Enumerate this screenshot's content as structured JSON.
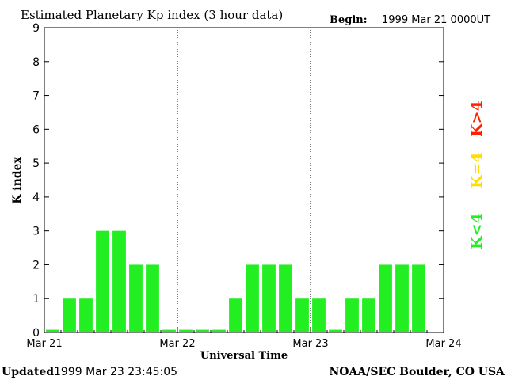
{
  "header": {
    "title": "Estimated Planetary Kp index (3 hour data)",
    "begin_label": "Begin:",
    "begin_value": "1999 Mar 21 0000UT"
  },
  "footer": {
    "updated_label": "Updated",
    "updated_value": "1999 Mar 23 23:45:05",
    "credit": "NOAA/SEC Boulder, CO USA"
  },
  "legend": {
    "items": [
      {
        "label": "K>4",
        "color": "#ff2200"
      },
      {
        "label": "K=4",
        "color": "#ffdd00"
      },
      {
        "label": "K<4",
        "color": "#22ee22"
      }
    ]
  },
  "chart_data": {
    "type": "bar",
    "ylabel": "K index",
    "xlabel": "Universal Time",
    "ylim": [
      0,
      9
    ],
    "yticks": [
      0,
      1,
      2,
      3,
      4,
      5,
      6,
      7,
      8,
      9
    ],
    "x_tick_labels": [
      "Mar 21",
      "Mar 22",
      "Mar 23",
      "Mar 24"
    ],
    "day_divider_labels": [
      "Mar 22",
      "Mar 23"
    ],
    "bar_interval_hours": 3,
    "values": [
      0,
      1,
      1,
      3,
      3,
      2,
      2,
      0,
      0,
      0,
      0,
      1,
      2,
      2,
      2,
      1,
      1,
      0,
      1,
      1,
      2,
      2,
      2
    ],
    "bar_color": "#22ee22",
    "grid": false
  }
}
